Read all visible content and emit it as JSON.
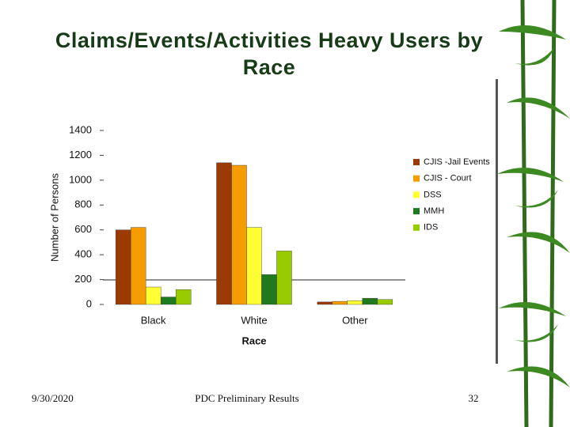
{
  "chart_data": {
    "type": "bar",
    "title": "Claims/Events/Activities Heavy Users by Race",
    "x_label": "Race",
    "y_label": "Number of Persons",
    "categories": [
      "Black",
      "White",
      "Other"
    ],
    "series": [
      {
        "name": "CJIS -Jail Events",
        "color": "#9c3a06",
        "values": [
          600,
          1140,
          20
        ]
      },
      {
        "name": "CJIS - Court",
        "color": "#f59c00",
        "values": [
          620,
          1120,
          25
        ]
      },
      {
        "name": "DSS",
        "color": "#ffff33",
        "values": [
          140,
          620,
          30
        ]
      },
      {
        "name": "MMH",
        "color": "#1f7a1f",
        "values": [
          60,
          240,
          50
        ]
      },
      {
        "name": "IDS",
        "color": "#99cc00",
        "values": [
          120,
          430,
          40
        ]
      }
    ],
    "ylim": [
      0,
      1400
    ],
    "yticks": [
      0,
      200,
      400,
      600,
      800,
      1000,
      1200,
      1400
    ],
    "legend": "right"
  },
  "footer": {
    "date": "9/30/2020",
    "center": "PDC Preliminary Results",
    "page": "32"
  }
}
